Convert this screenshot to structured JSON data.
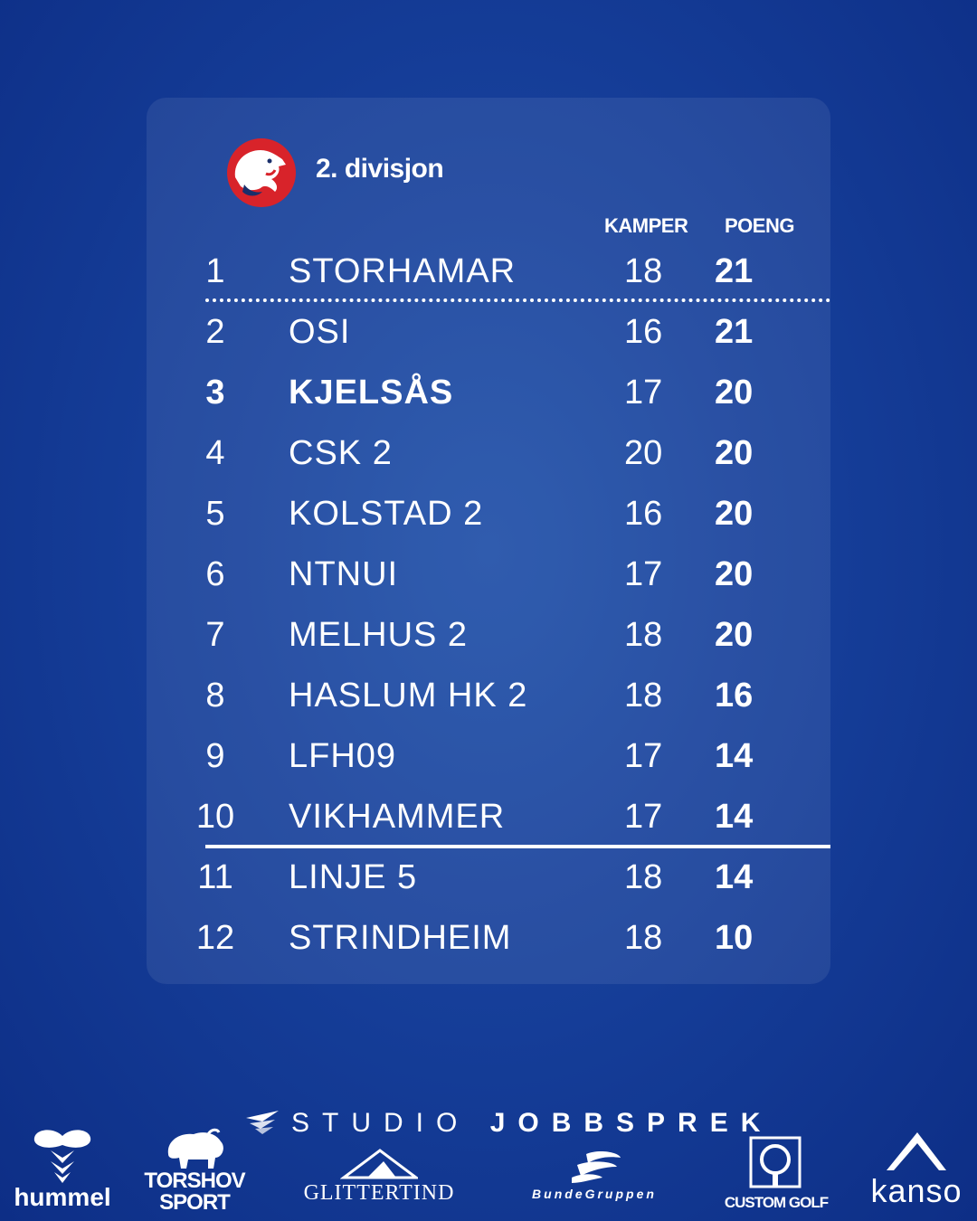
{
  "header": {
    "division": "2. divisjon"
  },
  "columns": {
    "kamper": "KAMPER",
    "poeng": "POENG"
  },
  "standings": [
    {
      "rank": "1",
      "team": "STORHAMAR",
      "kamper": "18",
      "poeng": "21"
    },
    {
      "rank": "2",
      "team": "OSI",
      "kamper": "16",
      "poeng": "21"
    },
    {
      "rank": "3",
      "team": "KJELSÅS",
      "kamper": "17",
      "poeng": "20",
      "highlight": true
    },
    {
      "rank": "4",
      "team": "CSK 2",
      "kamper": "20",
      "poeng": "20"
    },
    {
      "rank": "5",
      "team": "KOLSTAD 2",
      "kamper": "16",
      "poeng": "20"
    },
    {
      "rank": "6",
      "team": "NTNUI",
      "kamper": "17",
      "poeng": "20"
    },
    {
      "rank": "7",
      "team": "MELHUS 2",
      "kamper": "18",
      "poeng": "20"
    },
    {
      "rank": "8",
      "team": "HASLUM HK 2",
      "kamper": "18",
      "poeng": "16"
    },
    {
      "rank": "9",
      "team": "LFH09",
      "kamper": "17",
      "poeng": "14"
    },
    {
      "rank": "10",
      "team": "VIKHAMMER",
      "kamper": "17",
      "poeng": "14"
    },
    {
      "rank": "11",
      "team": "LINJE 5",
      "kamper": "18",
      "poeng": "14"
    },
    {
      "rank": "12",
      "team": "STRINDHEIM",
      "kamper": "18",
      "poeng": "10"
    }
  ],
  "sponsors": {
    "studio_light": "STUDIO",
    "studio_bold": "JOBBSPREK",
    "hummel": "hummel",
    "torshov_line1": "TORSHOV",
    "torshov_line2": "SPORT",
    "glittertind": "GLITTERTIND",
    "bundegruppen": "BundeGruppen",
    "customgolf": "CUSTOM GOLF",
    "kanso": "kanso"
  },
  "colors": {
    "background": "#163f9a",
    "logo_red": "#d8232a",
    "text": "#ffffff"
  }
}
